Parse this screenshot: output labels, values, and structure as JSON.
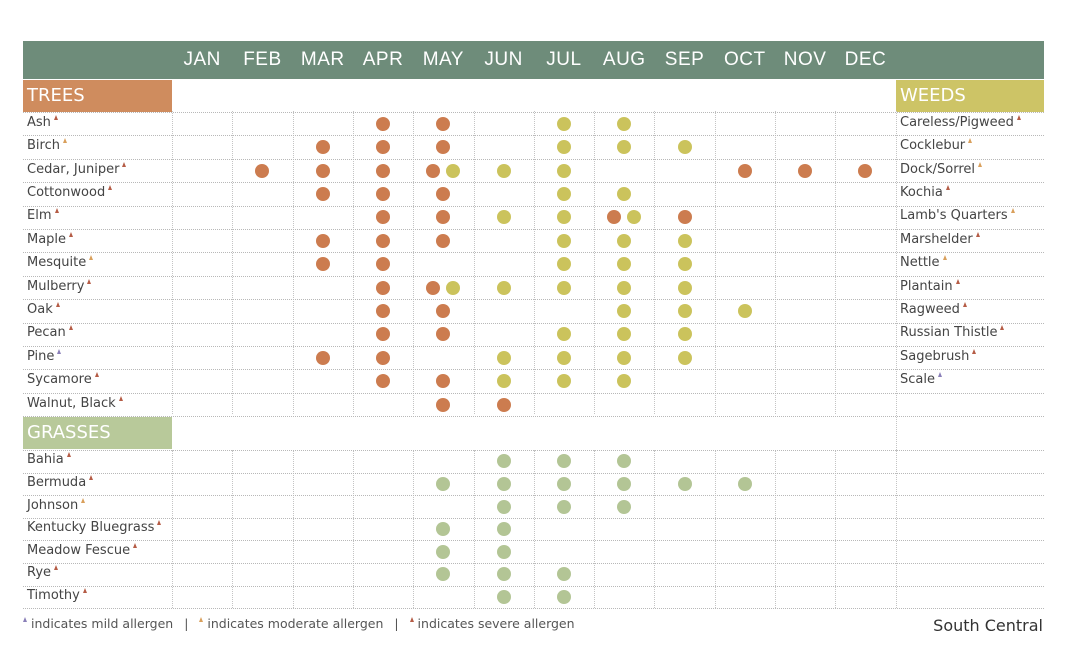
{
  "months": [
    "JAN",
    "FEB",
    "MAR",
    "APR",
    "MAY",
    "JUN",
    "JUL",
    "AUG",
    "SEP",
    "OCT",
    "NOV",
    "DEC"
  ],
  "colors": {
    "header": "#6e8c7a",
    "trees": "#cf8c5e",
    "weeds": "#cdc466",
    "grasses": "#b8c99a",
    "tree_dot": "#cc7c4f",
    "weed_dot": "#cbc35c",
    "grass_dot": "#b3c595",
    "mild": "#8a7fb8",
    "moderate": "#d9a05c",
    "severe": "#b55c46"
  },
  "sections": {
    "trees": "TREES",
    "weeds": "WEEDS",
    "grasses": "GRASSES"
  },
  "legend": {
    "mild": "indicates mild allergen",
    "moderate": "indicates moderate allergen",
    "severe": "indicates severe allergen"
  },
  "region": "South Central",
  "chart_data": {
    "type": "table",
    "columns": [
      "JAN",
      "FEB",
      "MAR",
      "APR",
      "MAY",
      "JUN",
      "JUL",
      "AUG",
      "SEP",
      "OCT",
      "NOV",
      "DEC"
    ],
    "trees": [
      {
        "name": "Ash",
        "severity": "severe",
        "tree_months": [
          4,
          5
        ],
        "weed_months": [
          7,
          8
        ]
      },
      {
        "name": "Birch",
        "severity": "moderate",
        "tree_months": [
          3,
          4,
          5
        ],
        "weed_months": [
          7,
          8,
          9
        ]
      },
      {
        "name": "Cedar, Juniper",
        "severity": "severe",
        "tree_months": [
          2,
          3,
          4,
          5,
          10,
          11,
          12
        ],
        "weed_months": [
          5,
          6,
          7
        ]
      },
      {
        "name": "Cottonwood",
        "severity": "severe",
        "tree_months": [
          3,
          4,
          5
        ],
        "weed_months": [
          7,
          8
        ]
      },
      {
        "name": "Elm",
        "severity": "severe",
        "tree_months": [
          4,
          5,
          8,
          9
        ],
        "weed_months": [
          6,
          7,
          8
        ]
      },
      {
        "name": "Maple",
        "severity": "severe",
        "tree_months": [
          3,
          4,
          5
        ],
        "weed_months": [
          7,
          8,
          9
        ]
      },
      {
        "name": "Mesquite",
        "severity": "moderate",
        "tree_months": [
          3,
          4
        ],
        "weed_months": [
          7,
          8,
          9
        ]
      },
      {
        "name": "Mulberry",
        "severity": "severe",
        "tree_months": [
          4,
          5
        ],
        "weed_months": [
          5,
          6,
          7,
          8,
          9
        ]
      },
      {
        "name": "Oak",
        "severity": "severe",
        "tree_months": [
          4,
          5
        ],
        "weed_months": [
          8,
          9,
          10
        ]
      },
      {
        "name": "Pecan",
        "severity": "severe",
        "tree_months": [
          4,
          5
        ],
        "weed_months": [
          7,
          8,
          9
        ]
      },
      {
        "name": "Pine",
        "severity": "mild",
        "tree_months": [
          3,
          4
        ],
        "weed_months": [
          6,
          7,
          8,
          9
        ]
      },
      {
        "name": "Sycamore",
        "severity": "severe",
        "tree_months": [
          4,
          5
        ],
        "weed_months": [
          6,
          7,
          8
        ]
      },
      {
        "name": "Walnut, Black",
        "severity": "severe",
        "tree_months": [
          5,
          6
        ],
        "weed_months": []
      }
    ],
    "weeds": [
      {
        "name": "Careless/Pigweed",
        "severity": "severe"
      },
      {
        "name": "Cocklebur",
        "severity": "moderate"
      },
      {
        "name": "Dock/Sorrel",
        "severity": "moderate"
      },
      {
        "name": "Kochia",
        "severity": "severe"
      },
      {
        "name": "Lamb's Quarters",
        "severity": "moderate"
      },
      {
        "name": "Marshelder",
        "severity": "severe"
      },
      {
        "name": "Nettle",
        "severity": "moderate"
      },
      {
        "name": "Plantain",
        "severity": "severe"
      },
      {
        "name": "Ragweed",
        "severity": "severe"
      },
      {
        "name": "Russian Thistle",
        "severity": "severe"
      },
      {
        "name": "Sagebrush",
        "severity": "severe"
      },
      {
        "name": "Scale",
        "severity": "mild"
      }
    ],
    "grasses": [
      {
        "name": "Bahia",
        "severity": "severe",
        "months": [
          6,
          7,
          8
        ]
      },
      {
        "name": "Bermuda",
        "severity": "severe",
        "months": [
          5,
          6,
          7,
          8,
          9,
          10
        ]
      },
      {
        "name": "Johnson",
        "severity": "moderate",
        "months": [
          6,
          7,
          8
        ]
      },
      {
        "name": "Kentucky Bluegrass",
        "severity": "severe",
        "months": [
          5,
          6
        ]
      },
      {
        "name": "Meadow Fescue",
        "severity": "severe",
        "months": [
          5,
          6
        ]
      },
      {
        "name": "Rye",
        "severity": "severe",
        "months": [
          5,
          6,
          7
        ]
      },
      {
        "name": "Timothy",
        "severity": "severe",
        "months": [
          6,
          7
        ]
      }
    ]
  }
}
